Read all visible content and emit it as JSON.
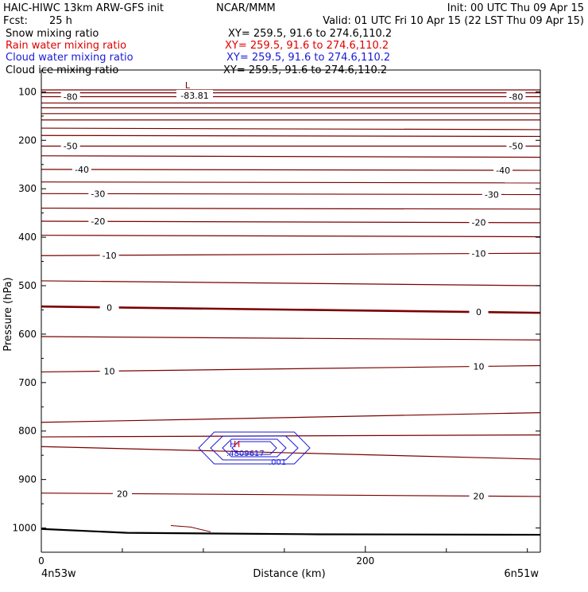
{
  "header": {
    "title": "HAIC-HIWC 13km ARW-GFS init",
    "org": "NCAR/MMM",
    "init": "Init: 00 UTC Thu 09 Apr 15",
    "fcst_label": "Fcst:",
    "fcst_value": "25 h",
    "valid": "Valid: 01 UTC Fri 10 Apr 15 (22 LST Thu 09 Apr 15)"
  },
  "fields": [
    {
      "name": "Snow mixing ratio",
      "xy": "XY= 259.5, 91.6 to 274.6,110.2",
      "color": "#000000"
    },
    {
      "name": "Rain water mixing ratio",
      "xy": "XY= 259.5, 91.6 to 274.6,110.2",
      "color": "#e00000"
    },
    {
      "name": "Cloud water mixing ratio",
      "xy": "XY= 259.5, 91.6 to 274.6,110.2",
      "color": "#1a1ad6"
    },
    {
      "name": "Cloud ice mixing ratio",
      "xy": "XY= 259.5, 91.6 to 274.6,110.2",
      "color": "#000000"
    }
  ],
  "axes": {
    "ylabel": "Pressure (hPa)",
    "xlabel": "Distance (km)",
    "left_end": "4n53w",
    "right_end": "6n51w"
  },
  "chart_data": {
    "type": "line",
    "xlim": [
      0,
      308
    ],
    "ylim": [
      1050,
      55
    ],
    "yticks": [
      100,
      200,
      300,
      400,
      500,
      600,
      700,
      800,
      900,
      1000
    ],
    "xticks": [
      0,
      200
    ],
    "colors": {
      "isotherm": "#7a0000",
      "cloud": "#1a1ad6",
      "rain": "#e00000",
      "ground": "#000000",
      "axis": "#000000"
    },
    "isotherms": [
      {
        "label": "-80",
        "y": [
          110,
          110
        ],
        "label_x": [
          18,
          293
        ]
      },
      {
        "label": "-50",
        "y": [
          212,
          212
        ],
        "label_x": [
          18,
          293
        ]
      },
      {
        "label": "-40",
        "y": [
          260,
          262
        ],
        "label_x": [
          25,
          285
        ]
      },
      {
        "label": "-30",
        "y": [
          310,
          312
        ],
        "label_x": [
          35,
          278
        ]
      },
      {
        "label": "-20",
        "y": [
          367,
          370
        ],
        "label_x": [
          35,
          270
        ]
      },
      {
        "label": "-10",
        "y": [
          438,
          433
        ],
        "label_x": [
          42,
          270
        ]
      },
      {
        "label": "0",
        "y": [
          543,
          556
        ],
        "label_x": [
          42,
          270
        ],
        "thick": true
      },
      {
        "label": "10",
        "y": [
          678,
          665
        ],
        "label_x": [
          42,
          270
        ]
      },
      {
        "label": "20",
        "y": [
          928,
          935
        ],
        "label_x": [
          50,
          270
        ]
      }
    ],
    "cloud": {
      "labels": [
        "H",
        ".001"
      ]
    },
    "rain": {
      "labels": [
        "H",
        ".4809617"
      ]
    },
    "low_label": "L",
    "low_value": "-83.81"
  }
}
